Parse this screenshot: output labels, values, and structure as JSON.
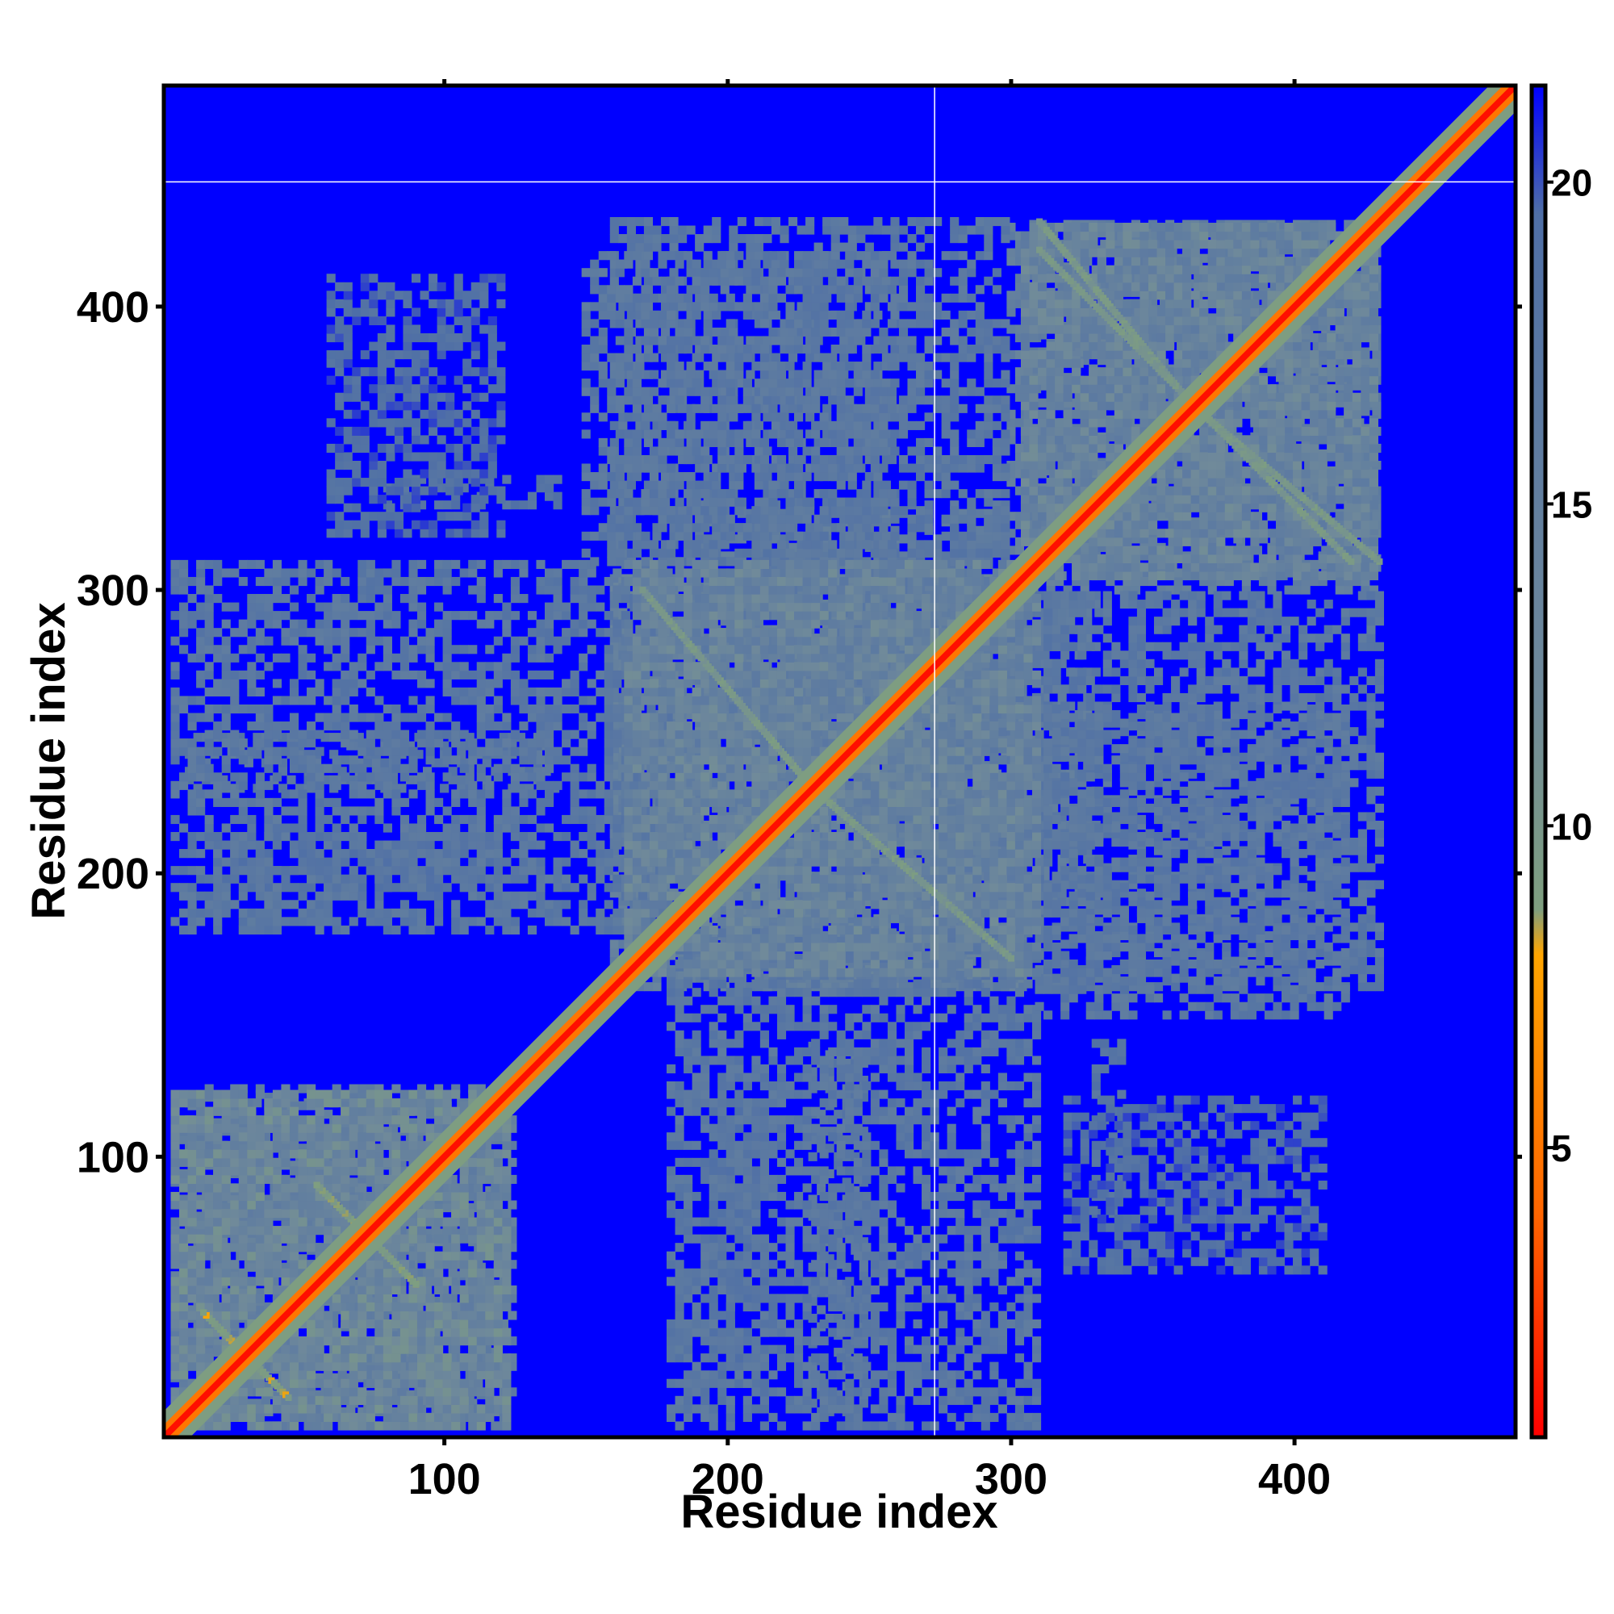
{
  "chart_data": {
    "type": "heatmap",
    "title": "",
    "xlabel": "Residue index",
    "ylabel": "Residue index",
    "n_residues": 478,
    "xlim": [
      1,
      478
    ],
    "ylim": [
      1,
      478
    ],
    "x_ticks": [
      100,
      200,
      300,
      400
    ],
    "y_ticks": [
      100,
      200,
      300,
      400
    ],
    "colorbar": {
      "range": [
        0.5,
        21.5
      ],
      "ticks": [
        5,
        10,
        15,
        20
      ],
      "stops": [
        {
          "value": 0.5,
          "color": "#ff0000"
        },
        {
          "value": 4.0,
          "color": "#ff6600"
        },
        {
          "value": 8.0,
          "color": "#ffa500"
        },
        {
          "value": 8.7,
          "color": "#7f9f7f"
        },
        {
          "value": 12.0,
          "color": "#708a9a"
        },
        {
          "value": 19.5,
          "color": "#4f6fa6"
        },
        {
          "value": 21.5,
          "color": "#0000ff"
        }
      ]
    },
    "background_value": 21,
    "reference_lines": {
      "vertical_x": 273,
      "horizontal_y": 444,
      "color": "#ffffff"
    },
    "diagonal": {
      "center_value": 1,
      "band_value": 5,
      "halo_value": 9
    },
    "domains": [
      {
        "name": "domain-1",
        "from": 5,
        "to": 123,
        "value": 13
      },
      {
        "name": "domain-2",
        "from": 165,
        "to": 310,
        "value": 14
      },
      {
        "name": "domain-3",
        "from": 305,
        "to": 430,
        "value": 14
      }
    ],
    "contact_patches": [
      {
        "x": [
          10,
          125
        ],
        "y": [
          5,
          120
        ],
        "value": 15
      },
      {
        "x": [
          160,
          305
        ],
        "y": [
          160,
          305
        ],
        "value": 15
      },
      {
        "x": [
          305,
          430
        ],
        "y": [
          300,
          430
        ],
        "value": 15
      },
      {
        "x": [
          10,
          140
        ],
        "y": [
          230,
          248
        ],
        "value": 17
      },
      {
        "x": [
          20,
          120
        ],
        "y": [
          195,
          215
        ],
        "value": 18
      },
      {
        "x": [
          180,
          310
        ],
        "y": [
          5,
          180
        ],
        "value": 17
      },
      {
        "x": [
          240,
          330
        ],
        "y": [
          190,
          300
        ],
        "value": 16
      },
      {
        "x": [
          310,
          430
        ],
        "y": [
          160,
          300
        ],
        "value": 17
      },
      {
        "x": [
          150,
          260
        ],
        "y": [
          310,
          420
        ],
        "value": 17
      },
      {
        "x": [
          80,
          140
        ],
        "y": [
          330,
          340
        ],
        "value": 18
      },
      {
        "x": [
          320,
          410
        ],
        "y": [
          60,
          120
        ],
        "value": 19
      }
    ],
    "cross_contacts": [
      {
        "x": [
          170,
          230
        ],
        "y": [
          230,
          300
        ],
        "value": 9
      },
      {
        "x": [
          230,
          300
        ],
        "y": [
          170,
          230
        ],
        "value": 9
      },
      {
        "x": [
          310,
          360
        ],
        "y": [
          370,
          430
        ],
        "value": 9
      },
      {
        "x": [
          360,
          420
        ],
        "y": [
          310,
          370
        ],
        "value": 9
      },
      {
        "x": [
          15,
          45
        ],
        "y": [
          15,
          45
        ],
        "value": 8
      },
      {
        "x": [
          55,
          90
        ],
        "y": [
          55,
          90
        ],
        "value": 8
      }
    ]
  }
}
